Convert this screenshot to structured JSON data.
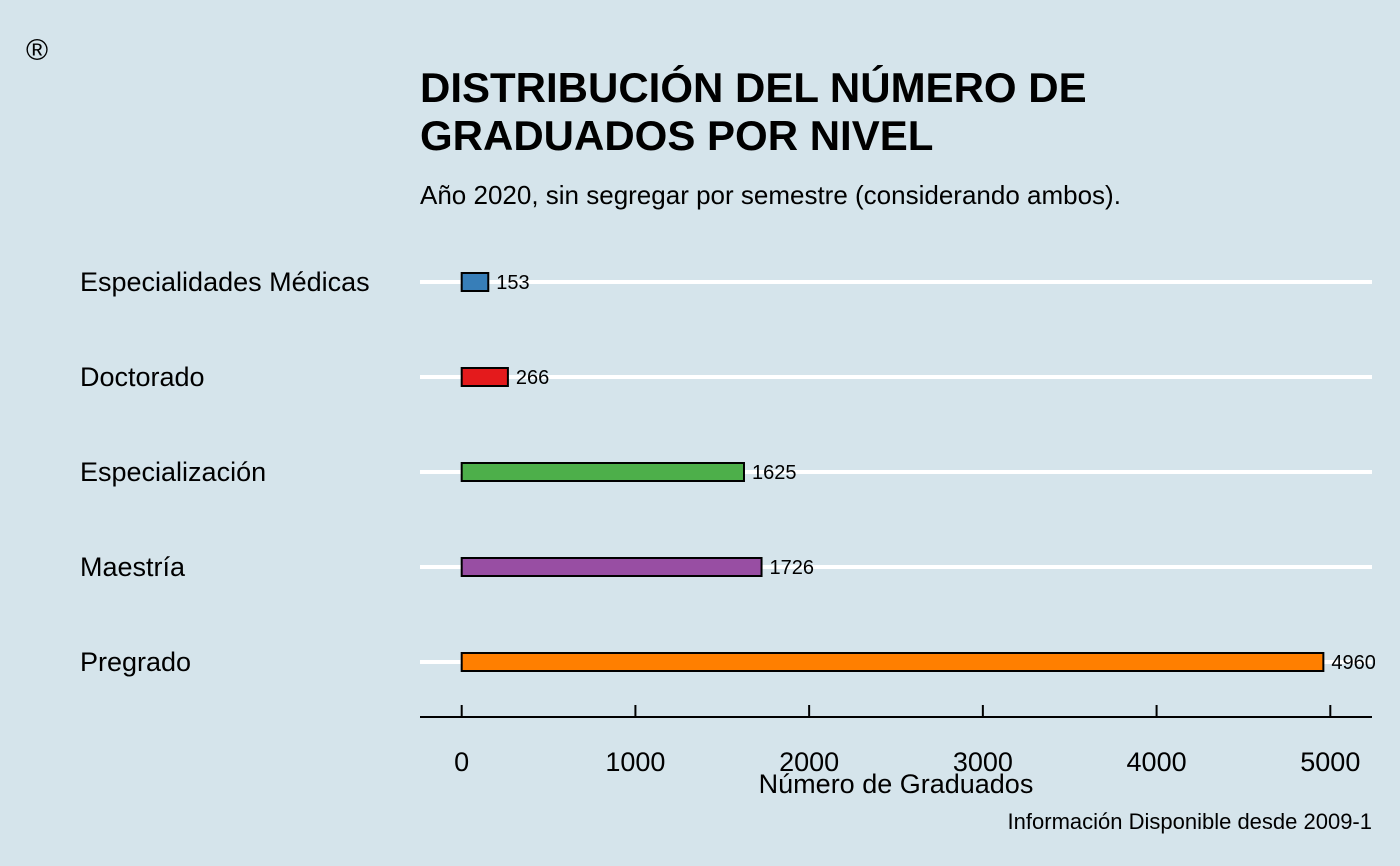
{
  "logo": {
    "symbol": "®"
  },
  "chart_data": {
    "type": "bar",
    "orientation": "horizontal",
    "title_lines": [
      "DISTRIBUCIÓN DEL NÚMERO DE",
      "GRADUADOS POR NIVEL"
    ],
    "subtitle": "Año 2020, sin segregar por semestre (considerando ambos).",
    "xlabel": "Número de Graduados",
    "ylabel": "",
    "caption": "Información Disponible desde 2009-1",
    "categories": [
      "Especialidades Médicas",
      "Doctorado",
      "Especialización",
      "Maestría",
      "Pregrado"
    ],
    "values": [
      153,
      266,
      1625,
      1726,
      4960
    ],
    "data_labels": [
      "153",
      "266",
      "1625",
      "1726",
      "4960"
    ],
    "colors": [
      "#377eb8",
      "#e41a1c",
      "#4daf4a",
      "#984ea3",
      "#ff7f00"
    ],
    "xlim": [
      -240,
      5240
    ],
    "xticks": [
      0,
      1000,
      2000,
      3000,
      4000,
      5000
    ],
    "xtick_labels": [
      "0",
      "1000",
      "2000",
      "3000",
      "4000",
      "5000"
    ],
    "grid": "horizontal-white",
    "legend": "none",
    "background": "#d5e4eb"
  }
}
